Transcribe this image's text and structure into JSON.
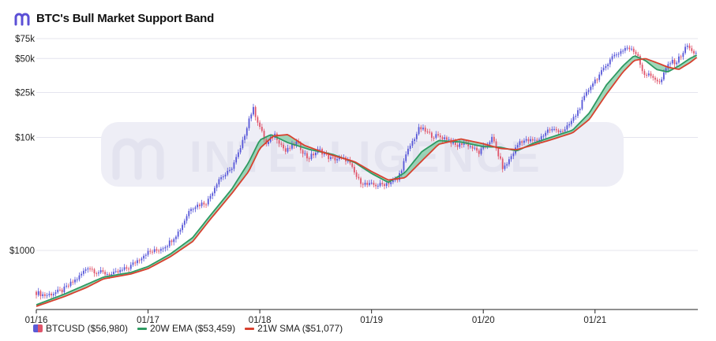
{
  "header": {
    "title": "BTC's Bull Market Support Band"
  },
  "watermark": "INTELLIGENCE",
  "colors": {
    "candle_up": "#5656d8",
    "candle_down": "#e0556b",
    "ema": "#2e9a62",
    "sma": "#d8412f",
    "band_fill": "#7fc9a1",
    "grid": "#e4e4ee"
  },
  "legend": [
    {
      "label": "BTCUSD ($56,980)",
      "key": "btc"
    },
    {
      "label": "20W EMA ($53,459)",
      "key": "ema"
    },
    {
      "label": "21W SMA ($51,077)",
      "key": "sma"
    }
  ],
  "chart_data": {
    "type": "line",
    "title": "BTC's Bull Market Support Band",
    "yscale": "log",
    "ylim": [
      300,
      80000
    ],
    "xlim": [
      2016.0,
      2021.92
    ],
    "y_ticks": [
      {
        "value": 1000,
        "label": "$1000"
      },
      {
        "value": 10000,
        "label": "$10k"
      },
      {
        "value": 25000,
        "label": "$25k"
      },
      {
        "value": 50000,
        "label": "$50k"
      },
      {
        "value": 75000,
        "label": "$75k"
      }
    ],
    "x_ticks": [
      {
        "value": 2016,
        "label": "01/16"
      },
      {
        "value": 2017,
        "label": "01/17"
      },
      {
        "value": 2018,
        "label": "01/18"
      },
      {
        "value": 2019,
        "label": "01/19"
      },
      {
        "value": 2020,
        "label": "01/20"
      },
      {
        "value": 2021,
        "label": "01/21"
      }
    ],
    "price_anchors": [
      [
        2016.0,
        430
      ],
      [
        2016.1,
        400
      ],
      [
        2016.25,
        440
      ],
      [
        2016.4,
        580
      ],
      [
        2016.48,
        720
      ],
      [
        2016.55,
        650
      ],
      [
        2016.7,
        610
      ],
      [
        2016.85,
        710
      ],
      [
        2017.0,
        950
      ],
      [
        2017.1,
        1000
      ],
      [
        2017.2,
        1150
      ],
      [
        2017.3,
        1500
      ],
      [
        2017.4,
        2400
      ],
      [
        2017.5,
        2600
      ],
      [
        2017.55,
        2700
      ],
      [
        2017.65,
        4300
      ],
      [
        2017.75,
        5000
      ],
      [
        2017.85,
        8000
      ],
      [
        2017.92,
        14500
      ],
      [
        2017.96,
        18000
      ],
      [
        2018.0,
        14000
      ],
      [
        2018.08,
        8500
      ],
      [
        2018.15,
        10800
      ],
      [
        2018.25,
        7500
      ],
      [
        2018.35,
        9000
      ],
      [
        2018.45,
        6500
      ],
      [
        2018.55,
        7800
      ],
      [
        2018.65,
        6500
      ],
      [
        2018.8,
        6400
      ],
      [
        2018.9,
        4200
      ],
      [
        2018.98,
        3800
      ],
      [
        2019.1,
        3800
      ],
      [
        2019.25,
        4200
      ],
      [
        2019.35,
        7900
      ],
      [
        2019.45,
        12200
      ],
      [
        2019.55,
        10500
      ],
      [
        2019.7,
        9800
      ],
      [
        2019.78,
        8300
      ],
      [
        2019.85,
        9200
      ],
      [
        2019.98,
        7300
      ],
      [
        2020.1,
        9900
      ],
      [
        2020.2,
        5200
      ],
      [
        2020.35,
        9400
      ],
      [
        2020.5,
        9300
      ],
      [
        2020.6,
        11700
      ],
      [
        2020.75,
        11500
      ],
      [
        2020.85,
        16000
      ],
      [
        2020.98,
        29000
      ],
      [
        2021.1,
        40000
      ],
      [
        2021.15,
        50000
      ],
      [
        2021.25,
        58000
      ],
      [
        2021.3,
        63000
      ],
      [
        2021.4,
        55000
      ],
      [
        2021.45,
        37000
      ],
      [
        2021.55,
        34000
      ],
      [
        2021.6,
        30000
      ],
      [
        2021.68,
        46000
      ],
      [
        2021.75,
        47000
      ],
      [
        2021.85,
        66000
      ],
      [
        2021.88,
        57000
      ],
      [
        2021.91,
        56980
      ]
    ],
    "ema_anchors": [
      [
        2016.0,
        330
      ],
      [
        2016.25,
        410
      ],
      [
        2016.45,
        500
      ],
      [
        2016.6,
        580
      ],
      [
        2016.85,
        640
      ],
      [
        2017.0,
        720
      ],
      [
        2017.2,
        930
      ],
      [
        2017.4,
        1300
      ],
      [
        2017.55,
        2000
      ],
      [
        2017.75,
        3500
      ],
      [
        2017.9,
        6000
      ],
      [
        2018.0,
        9500
      ],
      [
        2018.1,
        10600
      ],
      [
        2018.25,
        9000
      ],
      [
        2018.45,
        7800
      ],
      [
        2018.65,
        7100
      ],
      [
        2018.85,
        6000
      ],
      [
        2019.0,
        4800
      ],
      [
        2019.15,
        4000
      ],
      [
        2019.3,
        4900
      ],
      [
        2019.45,
        7500
      ],
      [
        2019.6,
        9400
      ],
      [
        2019.8,
        9100
      ],
      [
        2020.0,
        8300
      ],
      [
        2020.15,
        8200
      ],
      [
        2020.3,
        7600
      ],
      [
        2020.45,
        8900
      ],
      [
        2020.6,
        10000
      ],
      [
        2020.8,
        11600
      ],
      [
        2020.95,
        16500
      ],
      [
        2021.1,
        29000
      ],
      [
        2021.25,
        43000
      ],
      [
        2021.35,
        53000
      ],
      [
        2021.45,
        48000
      ],
      [
        2021.55,
        40000
      ],
      [
        2021.65,
        38000
      ],
      [
        2021.75,
        43000
      ],
      [
        2021.85,
        50000
      ],
      [
        2021.91,
        53459
      ]
    ],
    "sma_anchors": [
      [
        2016.0,
        320
      ],
      [
        2016.25,
        390
      ],
      [
        2016.45,
        470
      ],
      [
        2016.6,
        560
      ],
      [
        2016.85,
        620
      ],
      [
        2017.0,
        690
      ],
      [
        2017.2,
        880
      ],
      [
        2017.4,
        1200
      ],
      [
        2017.55,
        1850
      ],
      [
        2017.75,
        3200
      ],
      [
        2017.9,
        5000
      ],
      [
        2018.0,
        8000
      ],
      [
        2018.12,
        10300
      ],
      [
        2018.25,
        10600
      ],
      [
        2018.4,
        8500
      ],
      [
        2018.6,
        7200
      ],
      [
        2018.85,
        6100
      ],
      [
        2019.0,
        5000
      ],
      [
        2019.15,
        4200
      ],
      [
        2019.3,
        4400
      ],
      [
        2019.45,
        6200
      ],
      [
        2019.6,
        8700
      ],
      [
        2019.8,
        9700
      ],
      [
        2020.0,
        8800
      ],
      [
        2020.15,
        8000
      ],
      [
        2020.3,
        7800
      ],
      [
        2020.45,
        8600
      ],
      [
        2020.6,
        9500
      ],
      [
        2020.8,
        11000
      ],
      [
        2020.95,
        14500
      ],
      [
        2021.1,
        24000
      ],
      [
        2021.25,
        38000
      ],
      [
        2021.35,
        48000
      ],
      [
        2021.45,
        50000
      ],
      [
        2021.55,
        46000
      ],
      [
        2021.65,
        42000
      ],
      [
        2021.75,
        40000
      ],
      [
        2021.85,
        46000
      ],
      [
        2021.91,
        51077
      ]
    ]
  }
}
